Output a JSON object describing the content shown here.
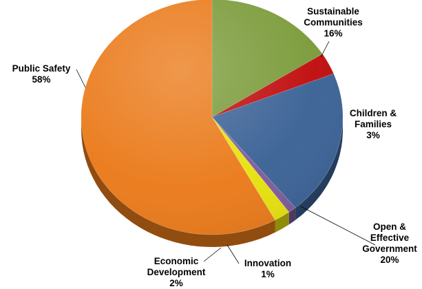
{
  "chart_data": {
    "type": "pie",
    "style": "3d-tilted",
    "start_angle_deg": 90,
    "direction": "clockwise",
    "slices": [
      {
        "label": [
          "Sustainable",
          "Communities"
        ],
        "pct_label": "16%",
        "value": 16,
        "color": "#7b9b3a"
      },
      {
        "label": [
          "Children &",
          "Families"
        ],
        "pct_label": "3%",
        "value": 3,
        "color": "#c00d0d"
      },
      {
        "label": [
          "Open &",
          "Effective",
          "Government"
        ],
        "pct_label": "20%",
        "value": 20,
        "color": "#3b6296"
      },
      {
        "label": [
          "Innovation"
        ],
        "pct_label": "1%",
        "value": 1,
        "color": "#7e5c9c"
      },
      {
        "label": [
          "Economic",
          "Development"
        ],
        "pct_label": "2%",
        "value": 2,
        "color": "#e7e20e"
      },
      {
        "label": [
          "Public Safety"
        ],
        "pct_label": "58%",
        "value": 58,
        "color": "#ea7a1a"
      }
    ]
  }
}
